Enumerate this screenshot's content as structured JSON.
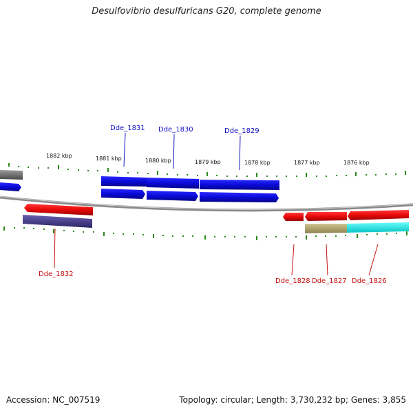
{
  "title": "Desulfovibrio desulfuricans G20, complete genome",
  "accession_text": "Accession: NC_007519",
  "stats_text": "Topology: circular; Length: 3,730,232 bp; Genes: 3,855",
  "colors": {
    "forward_gene": "#0a0ad8",
    "reverse_gene": "#e80808",
    "rna_bar": "#4a3f86",
    "olive_bar": "#b4a874",
    "cyan_bar": "#08ecec",
    "tick": "#2a8a1a",
    "backbone": "#8a8a8a",
    "forward_label": "#1010c0",
    "reverse_label": "#c81010"
  },
  "kbp_labels": [
    "1882 kbp",
    "1881 kbp",
    "1880 kbp",
    "1879 kbp",
    "1878 kbp",
    "1877 kbp",
    "1876 kbp"
  ],
  "forward_gene_labels": [
    "Dde_1831",
    "Dde_1830",
    "Dde_1829"
  ],
  "reverse_gene_labels": [
    "Dde_1832",
    "Dde_1828",
    "Dde_1827",
    "Dde_1826"
  ]
}
